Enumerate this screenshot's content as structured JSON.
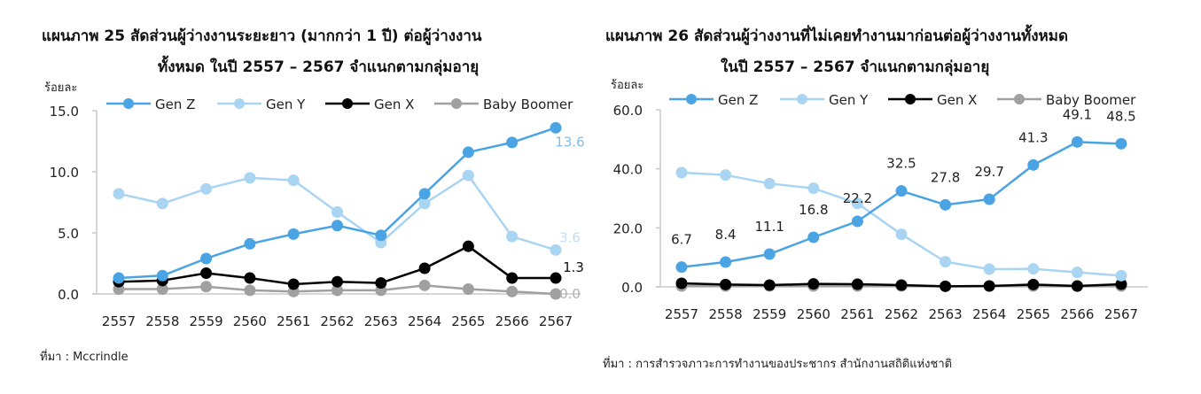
{
  "chart_data": [
    {
      "type": "line",
      "title": "แผนภาพ  25  สัดส่วนผู้ว่างงานระยะยาว (มากกว่า 1 ปี) ต่อผู้ว่างงานทั้งหมด ในปี 2557 – 2567 จำแนกตามกลุ่มอายุ",
      "title_line1": "แผนภาพ  25  สัดส่วนผู้ว่างงานระยะยาว (มากกว่า 1 ปี) ต่อผู้ว่างงาน",
      "title_line2": "ทั้งหมด ในปี 2557 – 2567 จำแนกตามกลุ่มอายุ",
      "ylabel": "ร้อยละ",
      "xlabel": "",
      "ylim": [
        0,
        15
      ],
      "yticks": [
        "0.0",
        "5.0",
        "10.0",
        "15.0"
      ],
      "grid": false,
      "legend_position": "top",
      "categories": [
        "2557",
        "2558",
        "2559",
        "2560",
        "2561",
        "2562",
        "2563",
        "2564",
        "2565",
        "2566",
        "2567"
      ],
      "series": [
        {
          "name": "Gen Z",
          "color": "#4aa3e3",
          "values": [
            1.3,
            1.5,
            2.9,
            4.1,
            4.9,
            5.6,
            4.8,
            8.2,
            11.6,
            12.4,
            13.6
          ],
          "labels": {
            "10": "13.6"
          }
        },
        {
          "name": "Gen Y",
          "color": "#a9d4f2",
          "values": [
            8.2,
            7.4,
            8.6,
            9.5,
            9.3,
            6.7,
            4.2,
            7.4,
            9.7,
            4.7,
            3.6
          ],
          "labels": {
            "10": "3.6"
          }
        },
        {
          "name": "Gen X",
          "color": "#000000",
          "values": [
            1.0,
            1.1,
            1.7,
            1.3,
            0.8,
            1.0,
            0.9,
            2.1,
            3.9,
            1.3,
            1.3
          ],
          "labels": {
            "10": "1.3"
          }
        },
        {
          "name": "Baby Boomer",
          "color": "#a0a0a0",
          "values": [
            0.4,
            0.4,
            0.6,
            0.3,
            0.2,
            0.3,
            0.3,
            0.7,
            0.4,
            0.2,
            0.0
          ],
          "labels": {
            "10": "0.0"
          }
        }
      ],
      "source": "ที่มา : Mccrindle"
    },
    {
      "type": "line",
      "title": "แผนภาพ  26  สัดส่วนผู้ว่างงานที่ไม่เคยทำงานมาก่อนต่อผู้ว่างงานทั้งหมด ในปี 2557 – 2567 จำแนกตามกลุ่มอายุ",
      "title_line1": "แผนภาพ  26  สัดส่วนผู้ว่างงานที่ไม่เคยทำงานมาก่อนต่อผู้ว่างงานทั้งหมด",
      "title_line2": "ในปี 2557 – 2567 จำแนกตามกลุ่มอายุ",
      "ylabel": "ร้อยละ",
      "xlabel": "",
      "ylim": [
        0,
        60
      ],
      "yticks": [
        "0.0",
        "20.0",
        "40.0",
        "60.0"
      ],
      "grid": false,
      "legend_position": "top",
      "categories": [
        "2557",
        "2558",
        "2559",
        "2560",
        "2561",
        "2562",
        "2563",
        "2564",
        "2565",
        "2566",
        "2567"
      ],
      "series": [
        {
          "name": "Gen Z",
          "color": "#4aa3e3",
          "values": [
            6.7,
            8.4,
            11.1,
            16.8,
            22.2,
            32.5,
            27.8,
            29.7,
            41.3,
            49.1,
            48.5
          ],
          "labels": {
            "0": "6.7",
            "1": "8.4",
            "2": "11.1",
            "3": "16.8",
            "4": "22.2",
            "5": "32.5",
            "6": "27.8",
            "7": "29.7",
            "8": "41.3",
            "9": "49.1",
            "10": "48.5"
          }
        },
        {
          "name": "Gen Y",
          "color": "#a9d4f2",
          "values": [
            38.7,
            37.9,
            35.0,
            33.4,
            28.3,
            17.8,
            8.5,
            6.0,
            6.1,
            4.9,
            3.8
          ]
        },
        {
          "name": "Gen X",
          "color": "#000000",
          "values": [
            1.2,
            0.8,
            0.6,
            1.0,
            0.9,
            0.6,
            0.2,
            0.3,
            0.8,
            0.3,
            0.9
          ]
        },
        {
          "name": "Baby Boomer",
          "color": "#a0a0a0",
          "values": [
            0.3,
            0.3,
            0.3,
            0.3,
            0.3,
            0.3,
            0.2,
            0.3,
            0.3,
            0.2,
            0.3
          ]
        }
      ],
      "source": "ที่มา : การสำรวจภาวะการทำงานของประชากร สำนักงานสถิติแห่งชาติ"
    }
  ]
}
